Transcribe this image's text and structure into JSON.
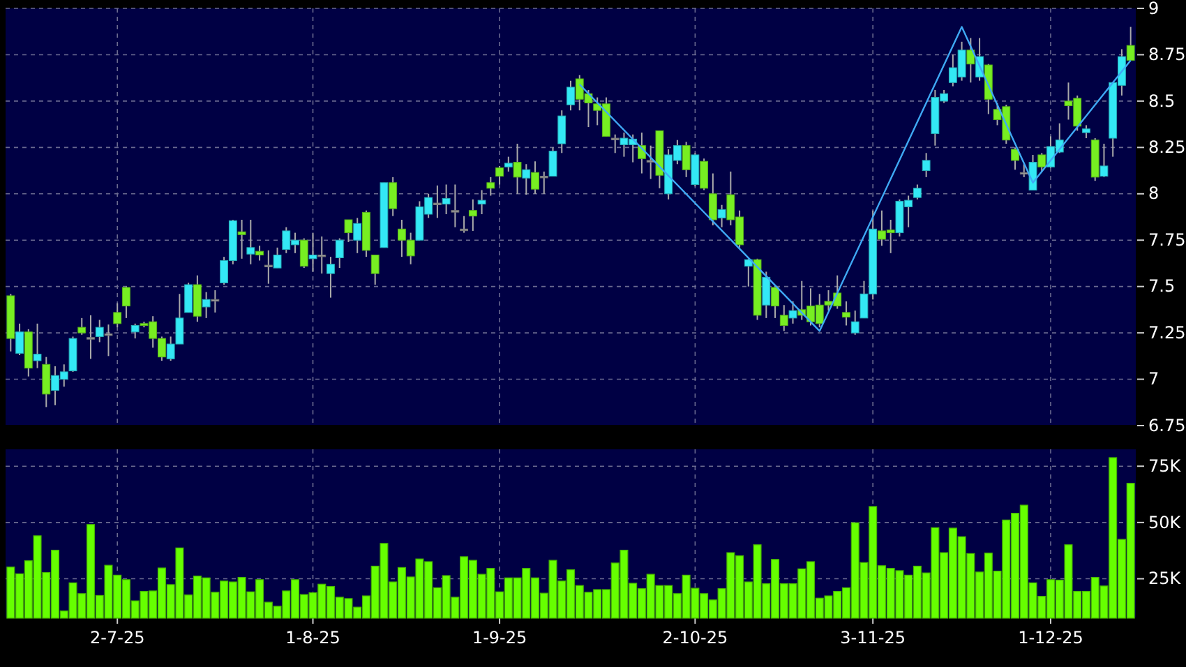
{
  "chart_data": [
    {
      "type": "candlestick",
      "categories": [
        null,
        null,
        null,
        null,
        null,
        null,
        null,
        null,
        null,
        null,
        null,
        null,
        null,
        null,
        null,
        null,
        null,
        null,
        null,
        null,
        null,
        null,
        null,
        null,
        null,
        null,
        null,
        null,
        null,
        null,
        null,
        null,
        null,
        null,
        null,
        null,
        null,
        null,
        null,
        null,
        null,
        null,
        null,
        null,
        null,
        null,
        null,
        null,
        null,
        null,
        null,
        null,
        null,
        null,
        null,
        null,
        null,
        null,
        null,
        null,
        null,
        null,
        null,
        null,
        null,
        null,
        null,
        null,
        null,
        null,
        null,
        null,
        null,
        null,
        null,
        null,
        null,
        null,
        null,
        null,
        null,
        null,
        null,
        null,
        null,
        null,
        null,
        null,
        null,
        null,
        null,
        null,
        null,
        null,
        null,
        null,
        null,
        null,
        null,
        null,
        null,
        null,
        null,
        null,
        null,
        null,
        null,
        null,
        null,
        null,
        null,
        null,
        null,
        null,
        null,
        null,
        null,
        null,
        null,
        null,
        null,
        null,
        null,
        null,
        null,
        null,
        null
      ],
      "ohlc": [
        [
          7.45,
          7.46,
          7.15,
          7.22
        ],
        [
          7.14,
          7.3,
          7.13,
          7.255
        ],
        [
          7.255,
          7.27,
          7.015,
          7.06
        ],
        [
          7.1,
          7.3,
          7.06,
          7.135
        ],
        [
          7.08,
          7.12,
          6.85,
          6.92
        ],
        [
          6.94,
          7.07,
          6.86,
          7.02
        ],
        [
          7.0,
          7.08,
          6.96,
          7.04
        ],
        [
          7.045,
          7.23,
          7.04,
          7.22
        ],
        [
          7.28,
          7.33,
          7.24,
          7.25
        ],
        [
          7.225,
          7.345,
          7.11,
          7.225
        ],
        [
          7.23,
          7.32,
          7.2,
          7.28
        ],
        [
          7.245,
          7.295,
          7.125,
          7.245
        ],
        [
          7.36,
          7.41,
          7.28,
          7.3
        ],
        [
          7.495,
          7.5,
          7.33,
          7.395
        ],
        [
          7.255,
          7.3,
          7.22,
          7.29
        ],
        [
          7.3,
          7.31,
          7.28,
          7.29
        ],
        [
          7.31,
          7.34,
          7.17,
          7.22
        ],
        [
          7.22,
          7.23,
          7.1,
          7.12
        ],
        [
          7.11,
          7.23,
          7.1,
          7.19
        ],
        [
          7.19,
          7.46,
          7.19,
          7.33
        ],
        [
          7.36,
          7.52,
          7.36,
          7.51
        ],
        [
          7.51,
          7.56,
          7.31,
          7.34
        ],
        [
          7.39,
          7.47,
          7.33,
          7.43
        ],
        [
          7.43,
          7.48,
          7.36,
          7.43
        ],
        [
          7.52,
          7.66,
          7.51,
          7.64
        ],
        [
          7.64,
          7.86,
          7.62,
          7.855
        ],
        [
          7.795,
          7.86,
          7.65,
          7.78
        ],
        [
          7.675,
          7.86,
          7.62,
          7.71
        ],
        [
          7.69,
          7.72,
          7.64,
          7.67
        ],
        [
          7.615,
          7.695,
          7.515,
          7.615
        ],
        [
          7.6,
          7.71,
          7.6,
          7.67
        ],
        [
          7.7,
          7.82,
          7.68,
          7.8
        ],
        [
          7.725,
          7.79,
          7.68,
          7.75
        ],
        [
          7.75,
          7.76,
          7.6,
          7.61
        ],
        [
          7.65,
          7.79,
          7.58,
          7.67
        ],
        [
          7.67,
          7.77,
          7.57,
          7.67
        ],
        [
          7.57,
          7.66,
          7.44,
          7.62
        ],
        [
          7.655,
          7.76,
          7.6,
          7.75
        ],
        [
          7.86,
          7.86,
          7.74,
          7.79
        ],
        [
          7.75,
          7.87,
          7.68,
          7.84
        ],
        [
          7.9,
          7.91,
          7.66,
          7.695
        ],
        [
          7.67,
          7.67,
          7.51,
          7.57
        ],
        [
          7.71,
          8.06,
          7.71,
          8.06
        ],
        [
          8.06,
          8.09,
          7.88,
          7.92
        ],
        [
          7.81,
          7.86,
          7.66,
          7.75
        ],
        [
          7.75,
          7.79,
          7.62,
          7.665
        ],
        [
          7.75,
          7.96,
          7.75,
          7.93
        ],
        [
          7.89,
          8.0,
          7.87,
          7.98
        ],
        [
          7.95,
          8.045,
          7.87,
          7.95
        ],
        [
          7.945,
          8.05,
          7.89,
          7.975
        ],
        [
          7.91,
          8.05,
          7.82,
          7.91
        ],
        [
          7.81,
          7.88,
          7.79,
          7.81
        ],
        [
          7.91,
          7.97,
          7.8,
          7.88
        ],
        [
          7.945,
          8.02,
          7.89,
          7.965
        ],
        [
          8.06,
          8.09,
          7.99,
          8.03
        ],
        [
          8.14,
          8.15,
          8.05,
          8.095
        ],
        [
          8.145,
          8.2,
          8.12,
          8.165
        ],
        [
          8.17,
          8.27,
          8.0,
          8.09
        ],
        [
          8.085,
          8.16,
          7.995,
          8.13
        ],
        [
          8.115,
          8.175,
          8.0,
          8.025
        ],
        [
          8.095,
          8.12,
          8.0,
          8.095
        ],
        [
          8.095,
          8.25,
          8.095,
          8.23
        ],
        [
          8.27,
          8.45,
          8.22,
          8.42
        ],
        [
          8.48,
          8.61,
          8.45,
          8.575
        ],
        [
          8.62,
          8.64,
          8.45,
          8.51
        ],
        [
          8.54,
          8.56,
          8.36,
          8.49
        ],
        [
          8.485,
          8.52,
          8.37,
          8.45
        ],
        [
          8.485,
          8.52,
          8.31,
          8.31
        ],
        [
          8.3,
          8.32,
          8.22,
          8.3
        ],
        [
          8.265,
          8.33,
          8.2,
          8.3
        ],
        [
          8.265,
          8.32,
          8.17,
          8.295
        ],
        [
          8.26,
          8.33,
          8.11,
          8.19
        ],
        [
          8.18,
          8.26,
          8.08,
          8.18
        ],
        [
          8.34,
          8.34,
          8.03,
          8.1
        ],
        [
          8.0,
          8.24,
          7.97,
          8.21
        ],
        [
          8.18,
          8.29,
          8.16,
          8.26
        ],
        [
          8.26,
          8.28,
          8.09,
          8.13
        ],
        [
          8.05,
          8.22,
          8.04,
          8.21
        ],
        [
          8.175,
          8.19,
          8.02,
          8.03
        ],
        [
          8.0,
          8.11,
          7.83,
          7.86
        ],
        [
          7.87,
          7.94,
          7.82,
          7.915
        ],
        [
          7.995,
          8.12,
          7.83,
          7.86
        ],
        [
          7.875,
          7.91,
          7.71,
          7.725
        ],
        [
          7.61,
          7.65,
          7.5,
          7.645
        ],
        [
          7.645,
          7.65,
          7.32,
          7.345
        ],
        [
          7.4,
          7.58,
          7.33,
          7.55
        ],
        [
          7.495,
          7.51,
          7.33,
          7.395
        ],
        [
          7.345,
          7.4,
          7.26,
          7.29
        ],
        [
          7.33,
          7.42,
          7.3,
          7.37
        ],
        [
          7.375,
          7.53,
          7.32,
          7.345
        ],
        [
          7.395,
          7.49,
          7.29,
          7.31
        ],
        [
          7.4,
          7.46,
          7.28,
          7.3
        ],
        [
          7.42,
          7.48,
          7.37,
          7.4
        ],
        [
          7.465,
          7.56,
          7.38,
          7.395
        ],
        [
          7.36,
          7.42,
          7.29,
          7.335
        ],
        [
          7.25,
          7.37,
          7.24,
          7.31
        ],
        [
          7.33,
          7.53,
          7.33,
          7.46
        ],
        [
          7.46,
          7.91,
          7.43,
          7.81
        ],
        [
          7.8,
          7.91,
          7.72,
          7.755
        ],
        [
          7.805,
          7.86,
          7.68,
          7.79
        ],
        [
          7.79,
          7.97,
          7.77,
          7.96
        ],
        [
          7.93,
          7.99,
          7.82,
          7.965
        ],
        [
          7.98,
          8.05,
          7.97,
          8.03
        ],
        [
          8.125,
          8.22,
          8.09,
          8.18
        ],
        [
          8.325,
          8.56,
          8.26,
          8.52
        ],
        [
          8.5,
          8.56,
          8.49,
          8.54
        ],
        [
          8.6,
          8.75,
          8.58,
          8.68
        ],
        [
          8.63,
          8.82,
          8.61,
          8.775
        ],
        [
          8.775,
          8.84,
          8.6,
          8.7
        ],
        [
          8.63,
          8.84,
          8.61,
          8.74
        ],
        [
          8.695,
          8.7,
          8.43,
          8.51
        ],
        [
          8.455,
          8.49,
          8.37,
          8.4
        ],
        [
          8.47,
          8.48,
          8.27,
          8.29
        ],
        [
          8.24,
          8.25,
          8.13,
          8.18
        ],
        [
          8.115,
          8.16,
          8.09,
          8.115
        ],
        [
          8.02,
          8.21,
          8.02,
          8.17
        ],
        [
          8.21,
          8.22,
          8.12,
          8.145
        ],
        [
          8.145,
          8.31,
          8.14,
          8.255
        ],
        [
          8.225,
          8.38,
          8.22,
          8.29
        ],
        [
          8.5,
          8.6,
          8.4,
          8.475
        ],
        [
          8.515,
          8.53,
          8.34,
          8.365
        ],
        [
          8.33,
          8.37,
          8.3,
          8.35
        ],
        [
          8.29,
          8.3,
          8.07,
          8.09
        ],
        [
          8.095,
          8.27,
          8.09,
          8.15
        ],
        [
          8.3,
          8.6,
          8.2,
          8.6
        ],
        [
          8.585,
          8.78,
          8.53,
          8.74
        ],
        [
          8.8,
          8.9,
          8.72,
          8.72
        ]
      ],
      "colors": [
        "#77ee22",
        "#33e8f5",
        "#77ee22",
        "#33e8f5",
        "#77ee22",
        "#33e8f5",
        "#33e8f5",
        "#33e8f5",
        "#77ee22",
        "#999999",
        "#33e8f5",
        "#999999",
        "#77ee22",
        "#77ee22",
        "#33e8f5",
        "#77ee22",
        "#77ee22",
        "#77ee22",
        "#33e8f5",
        "#33e8f5",
        "#33e8f5",
        "#77ee22",
        "#33e8f5",
        "#999999",
        "#33e8f5",
        "#33e8f5",
        "#77ee22",
        "#33e8f5",
        "#77ee22",
        "#999999",
        "#33e8f5",
        "#33e8f5",
        "#33e8f5",
        "#77ee22",
        "#33e8f5",
        "#999999",
        "#33e8f5",
        "#33e8f5",
        "#77ee22",
        "#33e8f5",
        "#77ee22",
        "#77ee22",
        "#33e8f5",
        "#77ee22",
        "#77ee22",
        "#77ee22",
        "#33e8f5",
        "#33e8f5",
        "#999999",
        "#33e8f5",
        "#999999",
        "#999999",
        "#77ee22",
        "#33e8f5",
        "#77ee22",
        "#77ee22",
        "#33e8f5",
        "#77ee22",
        "#33e8f5",
        "#77ee22",
        "#999999",
        "#33e8f5",
        "#33e8f5",
        "#33e8f5",
        "#77ee22",
        "#77ee22",
        "#77ee22",
        "#77ee22",
        "#999999",
        "#33e8f5",
        "#33e8f5",
        "#77ee22",
        "#999999",
        "#77ee22",
        "#33e8f5",
        "#33e8f5",
        "#77ee22",
        "#33e8f5",
        "#77ee22",
        "#77ee22",
        "#33e8f5",
        "#77ee22",
        "#77ee22",
        "#33e8f5",
        "#77ee22",
        "#33e8f5",
        "#77ee22",
        "#77ee22",
        "#33e8f5",
        "#77ee22",
        "#77ee22",
        "#77ee22",
        "#77ee22",
        "#77ee22",
        "#77ee22",
        "#33e8f5",
        "#33e8f5",
        "#33e8f5",
        "#77ee22",
        "#77ee22",
        "#33e8f5",
        "#33e8f5",
        "#33e8f5",
        "#33e8f5",
        "#33e8f5",
        "#33e8f5",
        "#33e8f5",
        "#33e8f5",
        "#77ee22",
        "#33e8f5",
        "#77ee22",
        "#77ee22",
        "#77ee22",
        "#77ee22",
        "#999999",
        "#33e8f5",
        "#77ee22",
        "#33e8f5",
        "#33e8f5",
        "#77ee22",
        "#77ee22",
        "#33e8f5",
        "#77ee22",
        "#33e8f5",
        "#33e8f5",
        "#33e8f5",
        "#77ee22"
      ],
      "series": [
        {
          "type": "line",
          "color": "#3fa9f5",
          "values": [
            null,
            null,
            null,
            null,
            null,
            null,
            null,
            null,
            null,
            null,
            null,
            null,
            null,
            null,
            null,
            null,
            null,
            null,
            null,
            null,
            null,
            null,
            null,
            null,
            null,
            null,
            null,
            null,
            null,
            null,
            null,
            null,
            null,
            null,
            null,
            null,
            null,
            null,
            null,
            null,
            null,
            null,
            null,
            null,
            null,
            null,
            null,
            null,
            null,
            null,
            null,
            null,
            null,
            null,
            null,
            null,
            null,
            null,
            null,
            null,
            null,
            null,
            null,
            null,
            8.59,
            null,
            null,
            null,
            null,
            null,
            null,
            null,
            null,
            null,
            null,
            null,
            null,
            null,
            null,
            null,
            null,
            null,
            null,
            null,
            null,
            null,
            null,
            null,
            null,
            null,
            null,
            7.26,
            null,
            null,
            null,
            null,
            null,
            null,
            null,
            null,
            null,
            null,
            null,
            null,
            null,
            null,
            null,
            8.9,
            null,
            null,
            null,
            null,
            null,
            null,
            null,
            8.06,
            null,
            null,
            null,
            null,
            null,
            null,
            null,
            null,
            null,
            null,
            8.72
          ]
        }
      ],
      "ylim": [
        6.75,
        9
      ],
      "yticks": [
        6.75,
        7,
        7.25,
        7.5,
        7.75,
        8,
        8.25,
        8.5,
        8.75,
        9
      ],
      "grid": true,
      "tick_labels": "y"
    },
    {
      "type": "bar",
      "categories": [
        null,
        null,
        null,
        null,
        null,
        null,
        null,
        null,
        null,
        null,
        null,
        null,
        "2-7-25",
        null,
        null,
        null,
        null,
        null,
        null,
        null,
        null,
        null,
        null,
        null,
        null,
        null,
        null,
        null,
        null,
        null,
        null,
        null,
        null,
        null,
        "1-8-25",
        null,
        null,
        null,
        null,
        null,
        null,
        null,
        null,
        null,
        null,
        null,
        null,
        null,
        null,
        null,
        null,
        null,
        null,
        null,
        null,
        "1-9-25",
        null,
        null,
        null,
        null,
        null,
        null,
        null,
        null,
        null,
        null,
        null,
        null,
        null,
        null,
        null,
        null,
        null,
        null,
        null,
        null,
        null,
        "2-10-25",
        null,
        null,
        null,
        null,
        null,
        null,
        null,
        null,
        null,
        null,
        null,
        null,
        null,
        null,
        null,
        null,
        null,
        null,
        null,
        "3-11-25",
        null,
        null,
        null,
        null,
        null,
        null,
        null,
        null,
        null,
        null,
        null,
        null,
        null,
        null,
        null,
        null,
        null,
        null,
        null,
        "1-12-25",
        null,
        null,
        null,
        null,
        null,
        null,
        null,
        null,
        null
      ],
      "values": [
        30200,
        27200,
        33000,
        44100,
        27800,
        37700,
        10700,
        23200,
        18400,
        49100,
        17600,
        31000,
        26600,
        24600,
        15200,
        19400,
        19600,
        29800,
        22400,
        38700,
        17800,
        26200,
        25400,
        19000,
        24000,
        23600,
        25600,
        19200,
        24600,
        14600,
        12800,
        19600,
        24600,
        18000,
        18800,
        22600,
        21600,
        16800,
        16200,
        12400,
        17400,
        30600,
        40700,
        23600,
        30000,
        25800,
        33800,
        32600,
        21000,
        26400,
        16800,
        34800,
        33200,
        27000,
        29600,
        19200,
        25400,
        25400,
        29600,
        25400,
        18600,
        33200,
        24000,
        29000,
        22000,
        19000,
        20200,
        20200,
        32000,
        37700,
        23000,
        20600,
        27000,
        22000,
        22000,
        18400,
        26600,
        20800,
        18400,
        15600,
        20600,
        36600,
        35200,
        23600,
        40100,
        22800,
        33600,
        22800,
        22800,
        29400,
        32600,
        16400,
        17400,
        19400,
        21000,
        49900,
        32200,
        57100,
        30800,
        29600,
        28600,
        26600,
        30600,
        27600,
        47700,
        36600,
        47500,
        43700,
        36200,
        28000,
        36400,
        28400,
        51100,
        54100,
        57700,
        23200,
        17200,
        24600,
        24400,
        40100,
        19400,
        19400,
        25600,
        21800,
        78800,
        42500,
        67400
      ],
      "color": "#66ff00",
      "ylim": [
        7500,
        82500
      ],
      "yticks": [
        {
          "value": 25000,
          "label": "25K"
        },
        {
          "value": 50000,
          "label": "50K"
        },
        {
          "value": 75000,
          "label": "75K"
        }
      ],
      "grid": true
    }
  ]
}
